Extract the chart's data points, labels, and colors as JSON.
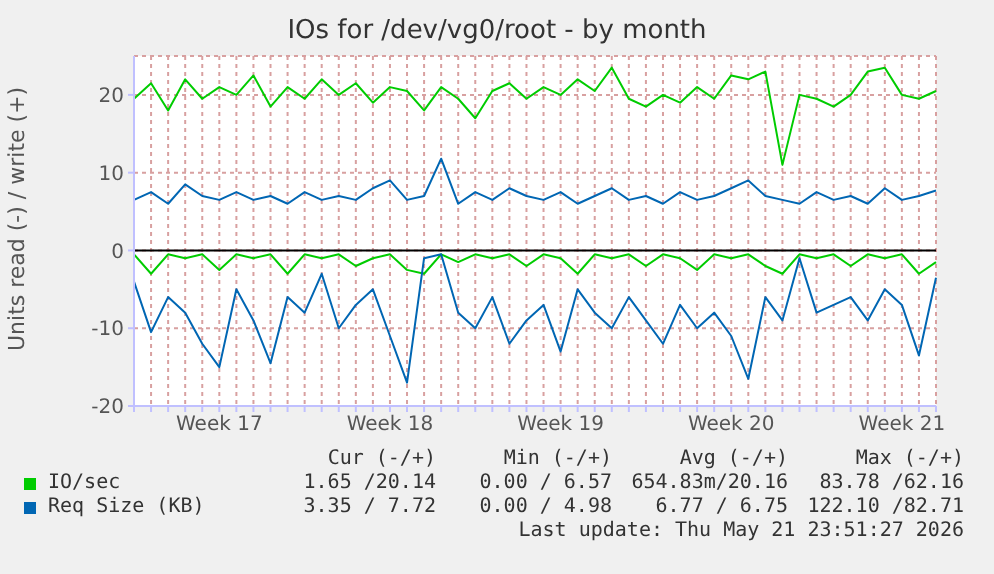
{
  "chart_data": {
    "type": "line",
    "title": "IOs for /dev/vg0/root - by month",
    "ylabel": "Units read (-) / write (+)",
    "categories": [
      null,
      null,
      null,
      null,
      null,
      "Week 17",
      null,
      null,
      null,
      null,
      null,
      null,
      null,
      null,
      null,
      "Week 18",
      null,
      null,
      null,
      null,
      null,
      null,
      null,
      null,
      null,
      "Week 19",
      null,
      null,
      null,
      null,
      null,
      null,
      null,
      null,
      null,
      "Week 20",
      null,
      null,
      null,
      null,
      null,
      null,
      null,
      null,
      null,
      "Week 21",
      null,
      null
    ],
    "series": [
      {
        "name": "IO/sec",
        "color": "#00cc00",
        "values": [
          19.5,
          21.5,
          18,
          22,
          19.5,
          21,
          20,
          22.5,
          18.5,
          21,
          19.5,
          22,
          20,
          21.5,
          19,
          21,
          20.5,
          18,
          21,
          19.5,
          17,
          20.5,
          21.5,
          19.5,
          21,
          20,
          22,
          20.5,
          23.5,
          19.5,
          18.5,
          20,
          19,
          21,
          19.5,
          22.5,
          22,
          23,
          11,
          20,
          19.5,
          18.5,
          20,
          23,
          23.5,
          20,
          19.5,
          20.5
        ]
      },
      {
        "color": "#00cc00",
        "values": [
          -0.5,
          -3,
          -0.5,
          -1,
          -0.5,
          -2.5,
          -0.5,
          -1,
          -0.5,
          -3,
          -0.5,
          -1,
          -0.5,
          -2,
          -1,
          -0.5,
          -2.5,
          -3,
          -0.5,
          -1.5,
          -0.5,
          -1,
          -0.5,
          -2,
          -0.5,
          -1,
          -3,
          -0.5,
          -1,
          -0.5,
          -2,
          -0.5,
          -1,
          -2.5,
          -0.5,
          -1,
          -0.5,
          -2,
          -3,
          -0.5,
          -1,
          -0.5,
          -2,
          -0.5,
          -1,
          -0.5,
          -3,
          -1.5
        ]
      },
      {
        "name": "Req Size (KB)",
        "color": "#0066b3",
        "values": [
          6.5,
          7.5,
          6,
          8.5,
          7,
          6.5,
          7.5,
          6.5,
          7,
          6,
          7.5,
          6.5,
          7,
          6.5,
          8,
          9,
          6.5,
          7,
          11.8,
          6,
          7.5,
          6.5,
          8,
          7,
          6.5,
          7.5,
          6,
          7,
          8,
          6.5,
          7,
          6,
          7.5,
          6.5,
          7,
          8,
          9,
          7,
          6.5,
          6,
          7.5,
          6.5,
          7,
          6,
          8,
          6.5,
          7,
          7.7
        ]
      },
      {
        "color": "#0066b3",
        "values": [
          -4,
          -10.5,
          -6,
          -8,
          -12,
          -15,
          -5,
          -9,
          -14.5,
          -6,
          -8,
          -3,
          -10,
          -7,
          -5,
          -11,
          -17,
          -1,
          -0.5,
          -8,
          -10,
          -6,
          -12,
          -9,
          -7,
          -13,
          -5,
          -8,
          -10,
          -6,
          -9,
          -12,
          -7,
          -10,
          -8,
          -11,
          -16.5,
          -6,
          -9,
          -1,
          -8,
          -7,
          -6,
          -9,
          -5,
          -7,
          -13.5,
          -3.5
        ]
      }
    ],
    "ylim": [
      -20,
      25
    ],
    "yticks": [
      -20,
      -10,
      0,
      10,
      20
    ],
    "ref_lines": [
      {
        "axis": "y",
        "value": 0,
        "color": "#000000"
      }
    ],
    "grid": true,
    "legend": "bottom",
    "marker": "none",
    "line_style": "solid",
    "annotations": [
      "Cur (-/+)",
      "Min (-/+)",
      "Avg (-/+)",
      "Max (-/+)",
      "1.65 /20.14",
      "0.00 / 6.57",
      "654.83m/20.16",
      "83.78 /62.16",
      "3.35 / 7.72",
      "0.00 / 4.98",
      "6.77 / 6.75",
      "122.10 /82.71",
      "Last update: Thu May 21 23:51:27 2026"
    ]
  }
}
